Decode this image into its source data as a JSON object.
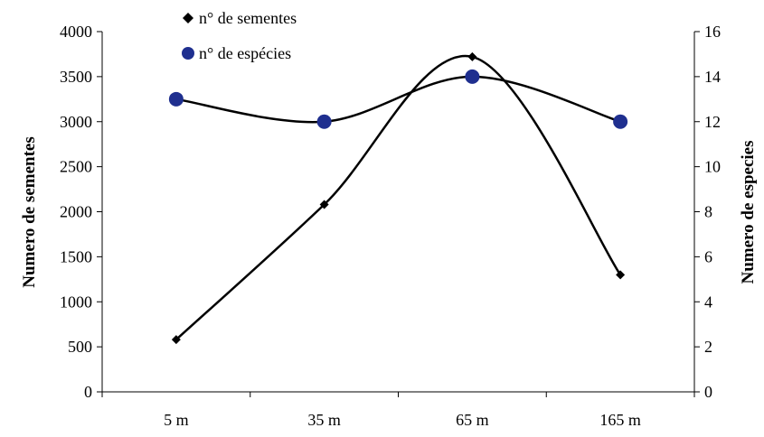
{
  "chart_data": {
    "type": "line",
    "categories": [
      "5 m",
      "35 m",
      "65 m",
      "165 m"
    ],
    "series": [
      {
        "name": "n° de sementes",
        "axis": "left",
        "values": [
          580,
          2080,
          3720,
          1300
        ],
        "marker": "diamond",
        "color": "#000000"
      },
      {
        "name": "n° de espécies",
        "axis": "right",
        "values": [
          13,
          12,
          14,
          12
        ],
        "marker": "circle",
        "color": "#1f2f8f"
      }
    ],
    "ylabel": "Numero de sementes",
    "ylabel_right": "Numero de especies",
    "ylim": [
      0,
      4000
    ],
    "ylim_right": [
      0,
      16
    ],
    "yticks": [
      "0",
      "500",
      "1000",
      "1500",
      "2000",
      "2500",
      "3000",
      "3500",
      "4000"
    ],
    "yticks_right": [
      "0",
      "2",
      "4",
      "6",
      "8",
      "10",
      "12",
      "14",
      "16"
    ],
    "grid": false,
    "legend_position": "top-center",
    "smoothed": true
  }
}
